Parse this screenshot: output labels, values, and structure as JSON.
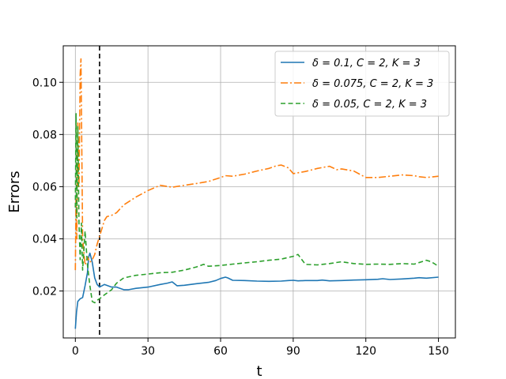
{
  "chart_data": {
    "type": "line",
    "title": "",
    "xlabel": "t",
    "ylabel": "Errors",
    "xlim": [
      -5,
      157
    ],
    "ylim": [
      0.002,
      0.114
    ],
    "grid": true,
    "legend_position": "top-right",
    "x_ticks": [
      0,
      30,
      60,
      90,
      120,
      150
    ],
    "x_tick_labels": [
      "0",
      "30",
      "60",
      "90",
      "120",
      "150"
    ],
    "y_ticks": [
      0.02,
      0.04,
      0.06,
      0.08,
      0.1
    ],
    "y_tick_labels": [
      "0.02",
      "0.04",
      "0.06",
      "0.08",
      "0.10"
    ],
    "vline": {
      "x": 10,
      "style": "dashed",
      "color": "#000000"
    },
    "series": [
      {
        "name": "δ = 0.1, C = 2, K = 3",
        "color": "#1f77b4",
        "dash": "solid",
        "x": [
          0,
          0.5,
          1,
          2,
          3,
          4,
          5,
          5.5,
          6,
          7,
          8,
          9,
          10,
          12,
          15,
          17,
          20,
          22,
          25,
          30,
          35,
          38,
          40,
          42,
          45,
          50,
          55,
          58,
          60,
          62,
          63,
          65,
          70,
          75,
          80,
          85,
          88,
          90,
          92,
          95,
          100,
          102,
          105,
          110,
          115,
          120,
          125,
          127,
          130,
          135,
          140,
          142,
          145,
          150
        ],
        "y": [
          0.0055,
          0.012,
          0.016,
          0.017,
          0.0175,
          0.022,
          0.027,
          0.033,
          0.0345,
          0.031,
          0.025,
          0.0225,
          0.0215,
          0.0225,
          0.0215,
          0.0215,
          0.0205,
          0.0205,
          0.021,
          0.0215,
          0.0225,
          0.023,
          0.0235,
          0.022,
          0.0222,
          0.0228,
          0.0233,
          0.024,
          0.0248,
          0.0253,
          0.025,
          0.0241,
          0.024,
          0.0238,
          0.0237,
          0.0238,
          0.024,
          0.0241,
          0.0239,
          0.024,
          0.024,
          0.0242,
          0.0239,
          0.024,
          0.0242,
          0.0243,
          0.0245,
          0.0247,
          0.0244,
          0.0246,
          0.0249,
          0.0251,
          0.0249,
          0.0253
        ]
      },
      {
        "name": "δ = 0.075, C = 2, K = 3",
        "color": "#ff7f0e",
        "dash": "dashdot",
        "x": [
          0,
          0.3,
          0.6,
          1,
          1.5,
          2,
          2.3,
          2.6,
          3,
          4,
          5,
          6,
          7,
          8,
          9,
          10,
          11,
          12,
          13,
          15,
          17,
          20,
          25,
          30,
          35,
          40,
          45,
          50,
          55,
          60,
          62,
          65,
          70,
          75,
          80,
          83,
          85,
          88,
          90,
          95,
          100,
          103,
          105,
          108,
          110,
          115,
          120,
          125,
          130,
          135,
          140,
          142,
          145,
          150
        ],
        "y": [
          0.028,
          0.055,
          0.04,
          0.085,
          0.06,
          0.103,
          0.109,
          0.08,
          0.04,
          0.03,
          0.033,
          0.031,
          0.032,
          0.034,
          0.038,
          0.041,
          0.044,
          0.047,
          0.0485,
          0.049,
          0.05,
          0.053,
          0.056,
          0.0585,
          0.0605,
          0.0598,
          0.0605,
          0.0612,
          0.062,
          0.0635,
          0.0642,
          0.064,
          0.0648,
          0.066,
          0.067,
          0.068,
          0.0683,
          0.0672,
          0.065,
          0.0658,
          0.067,
          0.0675,
          0.0678,
          0.0665,
          0.0668,
          0.066,
          0.0635,
          0.0635,
          0.064,
          0.0645,
          0.0642,
          0.0638,
          0.0635,
          0.064
        ]
      },
      {
        "name": "δ = 0.05, C = 2, K = 3",
        "color": "#2ca02c",
        "dash": "dashed",
        "x": [
          0,
          0.3,
          0.6,
          1,
          1.5,
          2,
          2.5,
          3,
          4,
          5,
          6,
          7,
          8,
          9,
          10,
          12,
          15,
          17,
          20,
          25,
          30,
          35,
          40,
          45,
          50,
          53,
          55,
          60,
          65,
          70,
          75,
          80,
          85,
          90,
          92,
          95,
          100,
          105,
          110,
          115,
          120,
          125,
          130,
          135,
          140,
          145,
          147,
          150
        ],
        "y": [
          0.052,
          0.088,
          0.048,
          0.083,
          0.046,
          0.032,
          0.046,
          0.028,
          0.043,
          0.03,
          0.022,
          0.016,
          0.0155,
          0.0165,
          0.017,
          0.0185,
          0.0205,
          0.023,
          0.025,
          0.026,
          0.0265,
          0.027,
          0.0272,
          0.028,
          0.0292,
          0.0302,
          0.0295,
          0.0298,
          0.0303,
          0.0308,
          0.0312,
          0.0318,
          0.0322,
          0.0333,
          0.034,
          0.0302,
          0.03,
          0.0305,
          0.0312,
          0.0305,
          0.0302,
          0.0303,
          0.0302,
          0.0305,
          0.0303,
          0.0318,
          0.0312,
          0.0295
        ]
      }
    ]
  }
}
